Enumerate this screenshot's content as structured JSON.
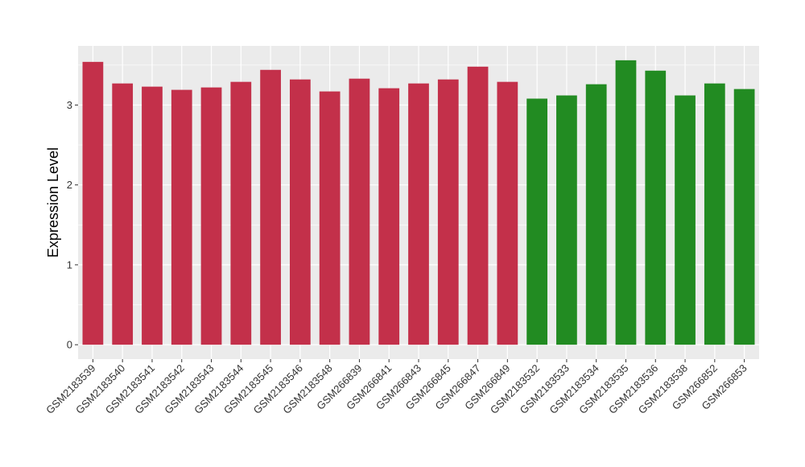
{
  "chart_data": {
    "type": "bar",
    "title": "",
    "xlabel": "",
    "ylabel": "Expression Level",
    "ylim": [
      -0.18,
      3.74
    ],
    "yticks": [
      0,
      1,
      2,
      3
    ],
    "grid": true,
    "legend": "none",
    "categories": [
      "GSM2183539",
      "GSM2183540",
      "GSM2183541",
      "GSM2183542",
      "GSM2183543",
      "GSM2183544",
      "GSM2183545",
      "GSM2183546",
      "GSM2183548",
      "GSM266839",
      "GSM266841",
      "GSM266843",
      "GSM266845",
      "GSM266847",
      "GSM266849",
      "GSM2183532",
      "GSM2183533",
      "GSM2183534",
      "GSM2183535",
      "GSM2183536",
      "GSM2183538",
      "GSM266852",
      "GSM266853"
    ],
    "values": [
      3.54,
      3.27,
      3.23,
      3.19,
      3.22,
      3.29,
      3.44,
      3.32,
      3.17,
      3.33,
      3.21,
      3.27,
      3.32,
      3.48,
      3.29,
      3.08,
      3.12,
      3.26,
      3.56,
      3.43,
      3.12,
      3.27,
      3.2
    ],
    "bar_colors": [
      "#C3304A",
      "#C3304A",
      "#C3304A",
      "#C3304A",
      "#C3304A",
      "#C3304A",
      "#C3304A",
      "#C3304A",
      "#C3304A",
      "#C3304A",
      "#C3304A",
      "#C3304A",
      "#C3304A",
      "#C3304A",
      "#C3304A",
      "#228B22",
      "#228B22",
      "#228B22",
      "#228B22",
      "#228B22",
      "#228B22",
      "#228B22",
      "#228B22"
    ],
    "panel_background": "#EBEBEB",
    "grid_color": "#FFFFFF"
  }
}
